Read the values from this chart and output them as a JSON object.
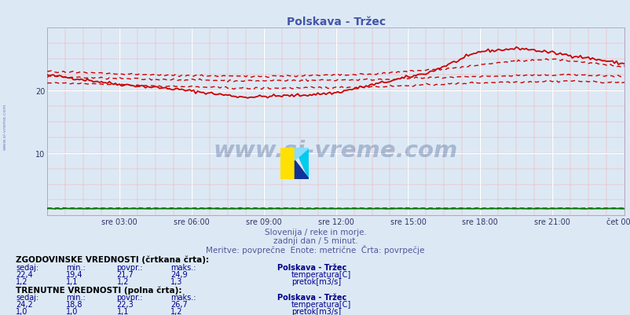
{
  "title": "Polskava - Tržec",
  "title_color": "#4455aa",
  "background_color": "#dce9f5",
  "plot_bg_color": "#dce9f5",
  "fig_bg_color": "#dce9f5",
  "xlim": [
    0,
    288
  ],
  "ylim": [
    0,
    30
  ],
  "yticks": [
    10,
    20
  ],
  "xtick_labels": [
    "sre 03:00",
    "sre 06:00",
    "sre 09:00",
    "sre 12:00",
    "sre 15:00",
    "sre 18:00",
    "sre 21:00",
    "čet 00:00"
  ],
  "xtick_positions": [
    36,
    72,
    108,
    144,
    180,
    216,
    252,
    288
  ],
  "n_points": 289,
  "watermark_text": "www.si-vreme.com",
  "watermark_color": "#1a3a7a",
  "subtitle1": "Slovenija / reke in morje.",
  "subtitle2": "zadnji dan / 5 minut.",
  "subtitle3": "Meritve: povrpečne  Enote: metrične  Črta: povrpečje",
  "subtitle_color": "#555599",
  "table_header1": "ZGODOVINSKE VREDNOSTI (črtkana črta):",
  "table_header2": "TRENUTNE VREDNOSTI (polna črta):",
  "table_color": "#000088",
  "col_labels": [
    "sedaj:",
    "min.:",
    "povpr.:",
    "maks.:"
  ],
  "hist_temp": [
    22.4,
    19.4,
    21.7,
    24.9
  ],
  "hist_flow": [
    1.2,
    1.1,
    1.2,
    1.3
  ],
  "curr_temp": [
    24.2,
    18.8,
    22.3,
    26.7
  ],
  "curr_flow": [
    1.0,
    1.0,
    1.1,
    1.2
  ],
  "legend_station": "Polskava - Tržec",
  "legend_temp": "temperatura[C]",
  "legend_flow": "pretok[m3/s]",
  "color_temp": "#cc0000",
  "color_flow": "#007700",
  "left_label": "www.si-vreme.com",
  "left_label_color": "#4444aa"
}
